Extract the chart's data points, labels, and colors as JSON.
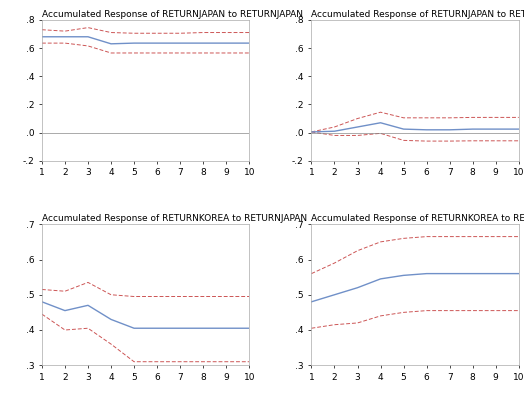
{
  "titles": [
    "Accumulated Response of RETURNJAPAN to RETURNJAPAN",
    "Accumulated Response of RETURNJAPAN to RETURNKOREA",
    "Accumulated Response of RETURNKOREA to RETURNJAPAN",
    "Accumulated Response of RETURNKOREA to RETURNKOREA"
  ],
  "x": [
    1,
    2,
    3,
    4,
    5,
    6,
    7,
    8,
    9,
    10
  ],
  "panels": [
    {
      "ylim": [
        -0.2,
        0.8
      ],
      "yticks": [
        -0.2,
        0.0,
        0.2,
        0.4,
        0.6,
        0.8
      ],
      "ytick_labels": [
        "-.2",
        ".0",
        ".2",
        ".4",
        ".6",
        ".8"
      ],
      "blue": [
        0.68,
        0.68,
        0.68,
        0.63,
        0.635,
        0.635,
        0.635,
        0.635,
        0.635,
        0.635
      ],
      "red_upper": [
        0.73,
        0.72,
        0.745,
        0.71,
        0.705,
        0.705,
        0.705,
        0.71,
        0.71,
        0.71
      ],
      "red_lower": [
        0.635,
        0.635,
        0.615,
        0.565,
        0.565,
        0.565,
        0.565,
        0.565,
        0.565,
        0.565
      ]
    },
    {
      "ylim": [
        -0.2,
        0.8
      ],
      "yticks": [
        -0.2,
        0.0,
        0.2,
        0.4,
        0.6,
        0.8
      ],
      "ytick_labels": [
        "-.2",
        ".0",
        ".2",
        ".4",
        ".6",
        ".8"
      ],
      "blue": [
        0.005,
        0.01,
        0.04,
        0.07,
        0.025,
        0.02,
        0.02,
        0.025,
        0.025,
        0.025
      ],
      "red_upper": [
        0.005,
        0.04,
        0.1,
        0.145,
        0.105,
        0.105,
        0.105,
        0.108,
        0.108,
        0.108
      ],
      "red_lower": [
        0.005,
        -0.02,
        -0.02,
        -0.005,
        -0.055,
        -0.06,
        -0.06,
        -0.058,
        -0.058,
        -0.058
      ]
    },
    {
      "ylim": [
        0.3,
        0.7
      ],
      "yticks": [
        0.3,
        0.4,
        0.5,
        0.6,
        0.7
      ],
      "ytick_labels": [
        ".3",
        ".4",
        ".5",
        ".6",
        ".7"
      ],
      "blue": [
        0.48,
        0.455,
        0.47,
        0.43,
        0.405,
        0.405,
        0.405,
        0.405,
        0.405,
        0.405
      ],
      "red_upper": [
        0.515,
        0.51,
        0.535,
        0.5,
        0.495,
        0.495,
        0.495,
        0.495,
        0.495,
        0.495
      ],
      "red_lower": [
        0.445,
        0.4,
        0.405,
        0.36,
        0.31,
        0.31,
        0.31,
        0.31,
        0.31,
        0.31
      ]
    },
    {
      "ylim": [
        0.3,
        0.7
      ],
      "yticks": [
        0.3,
        0.4,
        0.5,
        0.6,
        0.7
      ],
      "ytick_labels": [
        ".3",
        ".4",
        ".5",
        ".6",
        ".7"
      ],
      "blue": [
        0.48,
        0.5,
        0.52,
        0.545,
        0.555,
        0.56,
        0.56,
        0.56,
        0.56,
        0.56
      ],
      "red_upper": [
        0.56,
        0.59,
        0.625,
        0.65,
        0.66,
        0.665,
        0.665,
        0.665,
        0.665,
        0.665
      ],
      "red_lower": [
        0.405,
        0.415,
        0.42,
        0.44,
        0.45,
        0.455,
        0.455,
        0.455,
        0.455,
        0.455
      ]
    }
  ],
  "blue_color": "#7090c8",
  "red_color": "#cc5555",
  "title_fontsize": 6.5,
  "tick_fontsize": 6.5,
  "bg_color": "#ffffff",
  "fig_bg_color": "#ffffff"
}
